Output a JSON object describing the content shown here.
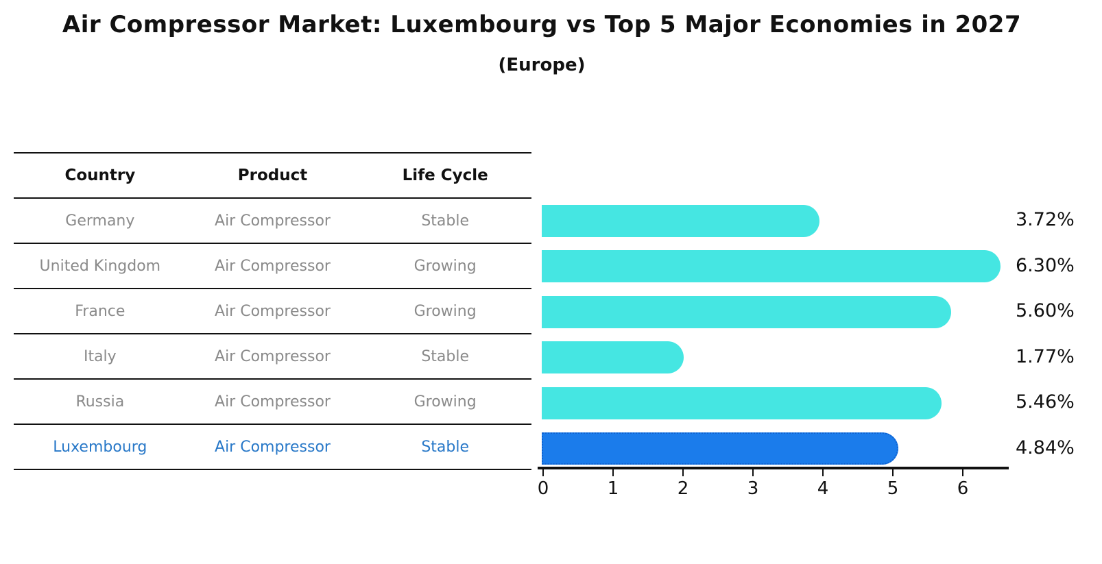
{
  "title": "Air Compressor Market: Luxembourg vs Top 5 Major Economies in 2027",
  "subtitle": "(Europe)",
  "table": {
    "headers": [
      "Country",
      "Product",
      "Life Cycle"
    ],
    "rows": [
      {
        "country": "Germany",
        "product": "Air Compressor",
        "life_cycle": "Stable",
        "highlight": false
      },
      {
        "country": "United Kingdom",
        "product": "Air Compressor",
        "life_cycle": "Growing",
        "highlight": false
      },
      {
        "country": "France",
        "product": "Air Compressor",
        "life_cycle": "Growing",
        "highlight": false
      },
      {
        "country": "Italy",
        "product": "Air Compressor",
        "life_cycle": "Stable",
        "highlight": false
      },
      {
        "country": "Russia",
        "product": "Air Compressor",
        "life_cycle": "Growing",
        "highlight": false
      },
      {
        "country": "Luxembourg",
        "product": "Air Compressor",
        "life_cycle": "Stable",
        "highlight": true
      }
    ]
  },
  "chart_data": {
    "type": "bar",
    "orientation": "horizontal",
    "title": "Air Compressor Market: Luxembourg vs Top 5 Major Economies in 2027",
    "subtitle": "(Europe)",
    "categories": [
      "Germany",
      "United Kingdom",
      "France",
      "Italy",
      "Russia",
      "Luxembourg"
    ],
    "values": [
      3.72,
      6.3,
      5.6,
      1.77,
      5.46,
      4.84
    ],
    "value_labels": [
      "3.72%",
      "6.30%",
      "5.60%",
      "1.77%",
      "5.46%",
      "4.84%"
    ],
    "unit": "percent CAGR",
    "x_ticks": [
      0,
      1,
      2,
      3,
      4,
      5,
      6
    ],
    "xlim": [
      0,
      6.65
    ],
    "grid": false,
    "legend": "none",
    "bar_color": "#45e6e2",
    "highlight_color": "#1b7ceb",
    "highlight_index": 5
  },
  "colors": {
    "background": "#ffffff",
    "text_primary": "#111111",
    "text_muted": "#8a8a8a",
    "highlight_text": "#2878c8",
    "bar_cyan": "#45e6e2",
    "bar_blue": "#1b7ceb",
    "bar_blue_edge": "#0f62d0",
    "axis": "#111111"
  }
}
